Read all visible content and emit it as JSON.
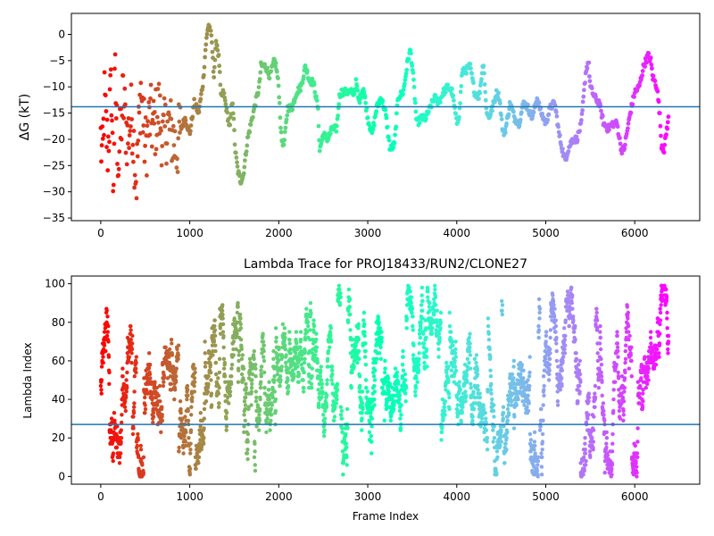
{
  "chart_data": [
    {
      "type": "scatter",
      "title": "",
      "xlabel": "",
      "ylabel": "ΔG (kT)",
      "xlim": [
        -330,
        6730
      ],
      "ylim": [
        -35.5,
        4
      ],
      "xticks": [
        0,
        1000,
        2000,
        3000,
        4000,
        5000,
        6000
      ],
      "yticks": [
        -35,
        -30,
        -25,
        -20,
        -15,
        -10,
        -5,
        0
      ],
      "hline": -13.8,
      "hline_color": "#1f77b4",
      "colormap": "rainbow",
      "color_order": "reversed",
      "n_frames": 6400,
      "series": [
        {
          "x": [
            0,
            20,
            40,
            60,
            80,
            100,
            120,
            140,
            160,
            180,
            200,
            250,
            300,
            350,
            400,
            450,
            500,
            550,
            600,
            650,
            700,
            750,
            800,
            850,
            900,
            950,
            1000,
            1050,
            1100,
            1150,
            1180,
            1210,
            1230,
            1250,
            1270,
            1300,
            1330,
            1350,
            1380,
            1420,
            1450,
            1480,
            1510,
            1540,
            1570,
            1600,
            1650,
            1700,
            1740,
            1780,
            1800,
            1850,
            1900,
            1950,
            1970,
            2000,
            2030,
            2060,
            2100,
            2150,
            2200,
            2250,
            2300,
            2350,
            2380,
            2400,
            2440,
            2460,
            2500,
            2550,
            2600,
            2650,
            2680,
            2700,
            2750,
            2800,
            2850,
            2870,
            2900,
            2950,
            3000,
            3050,
            3100,
            3150,
            3200,
            3250,
            3300,
            3340,
            3400,
            3450,
            3480,
            3500,
            3520,
            3550,
            3600,
            3650,
            3700,
            3750,
            3800,
            3850,
            3900,
            3950,
            4000,
            4030,
            4060,
            4100,
            4150,
            4200,
            4250,
            4300,
            4330,
            4360,
            4400,
            4450,
            4480,
            4520,
            4550,
            4600,
            4650,
            4700,
            4750,
            4800,
            4850,
            4900,
            4950,
            5000,
            5050,
            5100,
            5150,
            5200,
            5220,
            5250,
            5300,
            5350,
            5400,
            5450,
            5480,
            5500,
            5550,
            5600,
            5650,
            5700,
            5750,
            5800,
            5850,
            5880,
            5950,
            6000,
            6050,
            6100,
            6150,
            6180,
            6200,
            6250,
            6280,
            6300,
            6330,
            6360,
            6380,
            6400
          ],
          "y": [
            -20,
            -25,
            -12,
            -18,
            -22,
            -15,
            -10,
            -30,
            -8,
            -18,
            -25,
            -12,
            -20,
            -15,
            -28,
            -10,
            -22,
            -16,
            -18,
            -14,
            -20,
            -17,
            -19,
            -22,
            -18,
            -16,
            -19,
            -13,
            -15,
            -9,
            -2,
            2,
            1,
            -2,
            -8,
            -1,
            -5,
            -12,
            -11,
            -15,
            -18,
            -12,
            -22,
            -26,
            -28,
            -27,
            -20,
            -16,
            -13,
            -10,
            -6,
            -6,
            -8,
            -5,
            -6,
            -10,
            -20,
            -21,
            -14,
            -14,
            -11,
            -10,
            -6,
            -9,
            -9,
            -10,
            -14,
            -22,
            -19,
            -20,
            -18,
            -18,
            -12,
            -11,
            -11,
            -11,
            -11,
            -9,
            -13,
            -10,
            -16,
            -19,
            -14,
            -12,
            -15,
            -22,
            -21,
            -12,
            -11,
            -5,
            -3,
            -6,
            -10,
            -17,
            -16,
            -16,
            -14,
            -12,
            -13,
            -11,
            -10,
            -11,
            -17,
            -15,
            -7,
            -7,
            -6,
            -11,
            -12,
            -5,
            -14,
            -16,
            -14,
            -11,
            -12,
            -19,
            -18,
            -13,
            -16,
            -17,
            -13,
            -14,
            -16,
            -12,
            -15,
            -17,
            -14,
            -13,
            -19,
            -23,
            -24,
            -22,
            -20,
            -20,
            -17,
            -7,
            -5,
            -10,
            -12,
            -13,
            -17,
            -18,
            -17,
            -17,
            -22,
            -22,
            -15,
            -11,
            -10,
            -6,
            -4,
            -5,
            -8,
            -10,
            -15,
            -21,
            -22,
            -18,
            -16,
            -15
          ]
        }
      ]
    },
    {
      "type": "scatter",
      "title": "Lambda Trace for PROJ18433/RUN2/CLONE27",
      "xlabel": "Frame Index",
      "ylabel": "Lambda Index",
      "xlim": [
        -330,
        6730
      ],
      "ylim": [
        -4,
        104
      ],
      "xticks": [
        0,
        1000,
        2000,
        3000,
        4000,
        5000,
        6000
      ],
      "yticks": [
        0,
        20,
        40,
        60,
        80,
        100
      ],
      "hline": 27,
      "hline_color": "#1f77b4",
      "colormap": "rainbow",
      "color_order": "reversed",
      "n_frames": 6400,
      "value_range": [
        0,
        99
      ],
      "mean_profile_x": [
        0,
        200,
        500,
        800,
        1000,
        1200,
        1500,
        1700,
        1900,
        2100,
        2300,
        2500,
        2700,
        2900,
        3100,
        3300,
        3500,
        3700,
        3900,
        4100,
        4300,
        4500,
        4700,
        4900,
        5100,
        5300,
        5500,
        5700,
        5900,
        6100,
        6300,
        6400
      ],
      "mean_profile_y": [
        50,
        55,
        45,
        40,
        35,
        40,
        60,
        25,
        35,
        30,
        65,
        40,
        55,
        50,
        55,
        35,
        65,
        40,
        60,
        45,
        55,
        40,
        55,
        50,
        60,
        30,
        55,
        40,
        30,
        70,
        80,
        40
      ]
    }
  ]
}
